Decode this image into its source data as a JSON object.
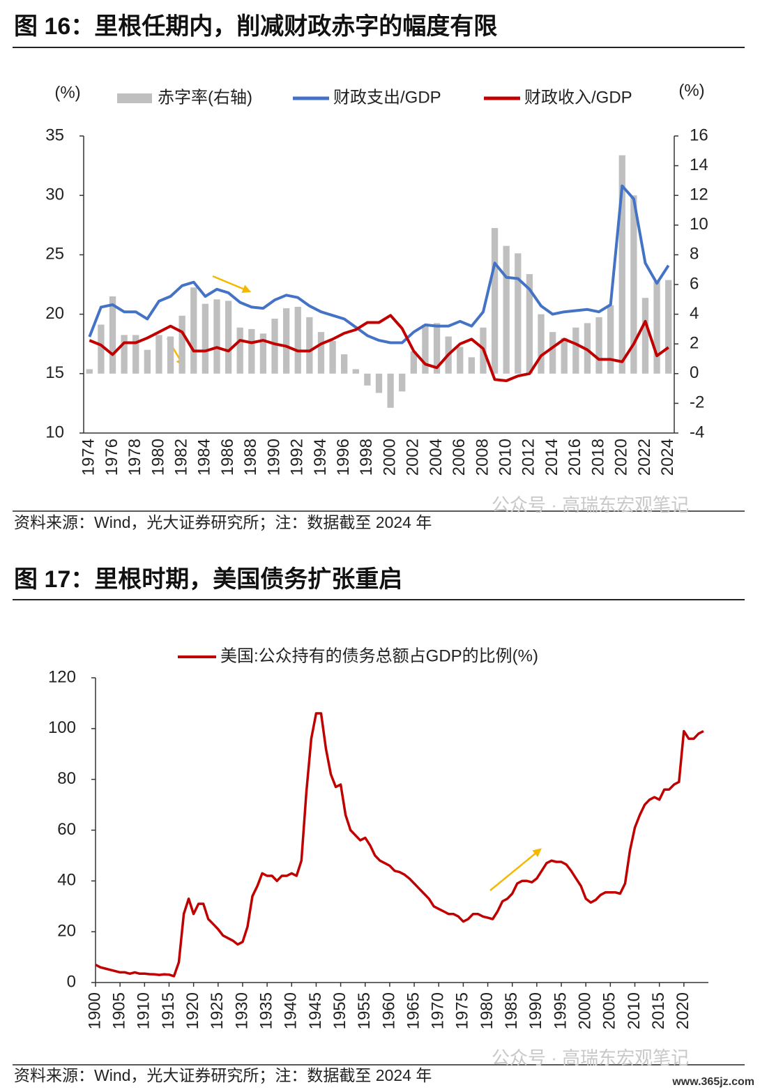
{
  "chart_data": [
    {
      "type": "combo",
      "title": "图 16：里根任期内，削减财政赤字的幅度有限",
      "source": "资料来源：Wind，光大证券研究所；注：数据截至 2024 年",
      "ylabel": "(%)",
      "y2label": "(%)",
      "categories": [
        "1974",
        null,
        "1976",
        null,
        "1978",
        null,
        "1980",
        null,
        "1982",
        null,
        "1984",
        null,
        "1986",
        null,
        "1988",
        null,
        "1990",
        null,
        "1992",
        null,
        "1994",
        null,
        "1996",
        null,
        "1998",
        null,
        "2000",
        null,
        "2002",
        null,
        "2004",
        null,
        "2006",
        null,
        "2008",
        null,
        "2010",
        null,
        "2012",
        null,
        "2014",
        null,
        "2016",
        null,
        "2018",
        null,
        "2020",
        null,
        "2022",
        null,
        "2024"
      ],
      "ylim": [
        10,
        35
      ],
      "yticks": [
        10,
        15,
        20,
        25,
        30,
        35
      ],
      "y2lim": [
        -4,
        16
      ],
      "y2ticks": [
        -4,
        -2,
        0,
        2,
        4,
        6,
        8,
        10,
        12,
        14,
        16
      ],
      "series": [
        {
          "name": "赤字率(右轴)",
          "type": "bar",
          "axis": "y2",
          "color": "#bfbfbf",
          "values": [
            0.3,
            3.3,
            5.2,
            2.6,
            2.6,
            1.6,
            2.6,
            2.5,
            3.9,
            5.8,
            4.7,
            5.0,
            4.9,
            3.1,
            3.0,
            2.7,
            3.7,
            4.4,
            4.5,
            3.8,
            2.8,
            2.2,
            1.3,
            0.3,
            -0.8,
            -1.3,
            -2.3,
            -1.2,
            1.5,
            3.3,
            3.4,
            2.5,
            1.8,
            1.1,
            3.1,
            9.8,
            8.6,
            8.1,
            6.7,
            4.0,
            2.8,
            2.4,
            3.1,
            3.4,
            3.8,
            4.6,
            14.7,
            12.0,
            5.1,
            6.2,
            6.3
          ]
        },
        {
          "name": "财政支出/GDP",
          "type": "line",
          "color": "#4472c4",
          "values": [
            18.1,
            20.6,
            20.8,
            20.2,
            20.2,
            19.6,
            21.1,
            21.5,
            22.4,
            22.7,
            21.5,
            22.1,
            21.8,
            21.0,
            20.6,
            20.5,
            21.2,
            21.6,
            21.4,
            20.7,
            20.2,
            19.9,
            19.6,
            18.9,
            18.2,
            17.8,
            17.6,
            17.6,
            18.5,
            19.1,
            19.0,
            19.0,
            19.4,
            19.0,
            20.2,
            24.3,
            23.1,
            23.0,
            22.1,
            20.7,
            20.0,
            20.2,
            20.3,
            20.4,
            20.2,
            20.8,
            30.8,
            29.7,
            24.3,
            22.6,
            24.1
          ]
        },
        {
          "name": "财政收入/GDP",
          "type": "line",
          "color": "#c00000",
          "values": [
            17.8,
            17.4,
            16.6,
            17.6,
            17.6,
            18.0,
            18.5,
            19.0,
            18.5,
            16.9,
            16.9,
            17.2,
            16.9,
            17.8,
            17.6,
            17.8,
            17.5,
            17.3,
            16.9,
            16.9,
            17.5,
            17.9,
            18.4,
            18.7,
            19.3,
            19.3,
            19.9,
            18.8,
            16.9,
            15.8,
            15.5,
            16.6,
            17.5,
            17.9,
            17.1,
            14.5,
            14.4,
            14.8,
            15.0,
            16.5,
            17.2,
            17.9,
            17.5,
            17.0,
            16.2,
            16.2,
            16.0,
            17.5,
            19.4,
            16.5,
            17.2
          ]
        }
      ]
    },
    {
      "type": "line",
      "title": "图 17：里根时期，美国债务扩张重启",
      "source": "资料来源：Wind，光大证券研究所；注：数据截至 2024 年",
      "x": [
        1900,
        1901,
        1902,
        1903,
        1904,
        1905,
        1906,
        1907,
        1908,
        1909,
        1910,
        1911,
        1912,
        1913,
        1914,
        1915,
        1916,
        1917,
        1918,
        1919,
        1920,
        1921,
        1922,
        1923,
        1924,
        1925,
        1926,
        1927,
        1928,
        1929,
        1930,
        1931,
        1932,
        1933,
        1934,
        1935,
        1936,
        1937,
        1938,
        1939,
        1940,
        1941,
        1942,
        1943,
        1944,
        1945,
        1946,
        1947,
        1948,
        1949,
        1950,
        1951,
        1952,
        1953,
        1954,
        1955,
        1956,
        1957,
        1958,
        1959,
        1960,
        1961,
        1962,
        1963,
        1964,
        1965,
        1966,
        1967,
        1968,
        1969,
        1970,
        1971,
        1972,
        1973,
        1974,
        1975,
        1976,
        1977,
        1978,
        1979,
        1980,
        1981,
        1982,
        1983,
        1984,
        1985,
        1986,
        1987,
        1988,
        1989,
        1990,
        1991,
        1992,
        1993,
        1994,
        1995,
        1996,
        1997,
        1998,
        1999,
        2000,
        2001,
        2002,
        2003,
        2004,
        2005,
        2006,
        2007,
        2008,
        2009,
        2010,
        2011,
        2012,
        2013,
        2014,
        2015,
        2016,
        2017,
        2018,
        2019,
        2020,
        2021,
        2022,
        2023,
        2024
      ],
      "xlim": [
        1900,
        2025
      ],
      "xticks": [
        1900,
        1905,
        1910,
        1915,
        1920,
        1925,
        1930,
        1935,
        1940,
        1945,
        1950,
        1955,
        1960,
        1965,
        1970,
        1975,
        1980,
        1985,
        1990,
        1995,
        2000,
        2005,
        2010,
        2015,
        2020
      ],
      "ylim": [
        0,
        120
      ],
      "yticks": [
        0,
        20,
        40,
        60,
        80,
        100,
        120
      ],
      "series": [
        {
          "name": "美国:公众持有的债务总额占GDP的比例(%)",
          "color": "#c00000",
          "values": [
            7,
            6,
            5.5,
            5,
            4.5,
            4,
            4,
            3.5,
            4,
            3.5,
            3.5,
            3.3,
            3.2,
            3,
            3.2,
            3.1,
            2.5,
            8,
            27,
            33,
            27,
            31,
            31,
            25,
            23,
            21,
            18.5,
            17.5,
            16.5,
            15,
            16,
            22,
            34,
            38,
            43,
            42,
            42,
            40,
            42,
            42,
            43,
            42,
            48,
            75,
            96,
            106,
            106,
            92,
            82,
            77,
            78,
            66,
            60,
            58,
            56,
            57,
            54,
            50,
            48,
            47,
            46,
            44,
            43.5,
            42.5,
            41,
            39,
            37,
            35,
            33,
            30,
            29,
            28,
            27,
            27,
            26,
            24,
            25,
            27,
            27,
            26,
            25.5,
            25,
            28,
            32,
            33,
            35,
            39,
            40,
            40,
            39.5,
            41,
            44,
            47,
            48,
            47.5,
            47.5,
            46.5,
            44,
            41,
            38,
            33,
            31.5,
            32.5,
            34.5,
            35.5,
            35.5,
            35.5,
            35,
            39,
            52,
            61,
            66,
            70,
            72,
            73,
            72,
            76,
            76,
            78,
            79,
            99,
            96,
            96,
            98,
            99
          ]
        }
      ]
    }
  ],
  "watermarks": [
    "公众号 · 高瑞东宏观笔记",
    "公众号 · 高瑞东宏观笔记",
    "www.365jz.com"
  ]
}
